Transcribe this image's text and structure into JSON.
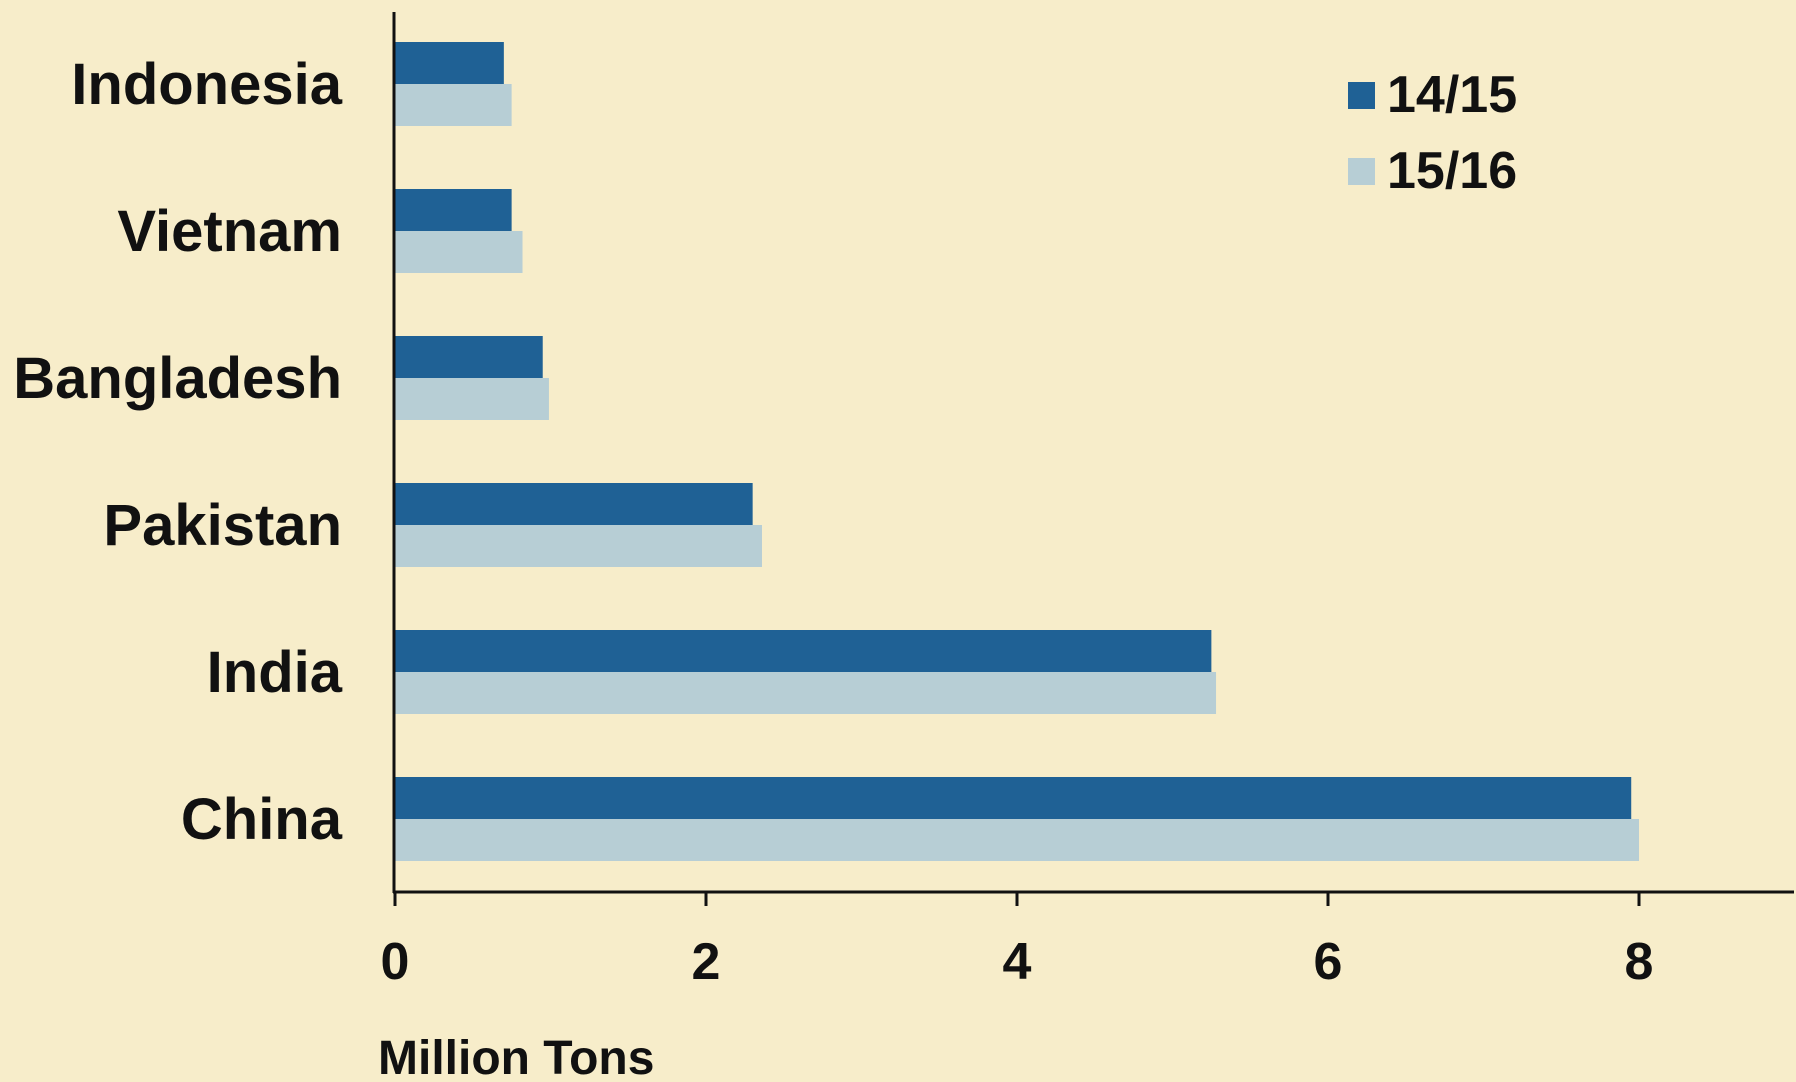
{
  "chart_data": {
    "type": "bar",
    "orientation": "horizontal",
    "title": "",
    "xlabel": "Million Tons",
    "ylabel": "",
    "categories": [
      "Indonesia",
      "Vietnam",
      "Bangladesh",
      "Pakistan",
      "India",
      "China"
    ],
    "series": [
      {
        "name": "14/15",
        "color": "#1f6195",
        "values": [
          0.7,
          0.75,
          0.95,
          2.3,
          5.25,
          7.95
        ]
      },
      {
        "name": "15/16",
        "color": "#b7ced5",
        "values": [
          0.75,
          0.82,
          0.99,
          2.36,
          5.28,
          8.0
        ]
      }
    ],
    "xlim": [
      0,
      9
    ],
    "xticks": [
      "0",
      "2",
      "4",
      "6",
      "8"
    ],
    "grid": false,
    "legend_position": "top-right",
    "background_color": "#f7edca"
  }
}
